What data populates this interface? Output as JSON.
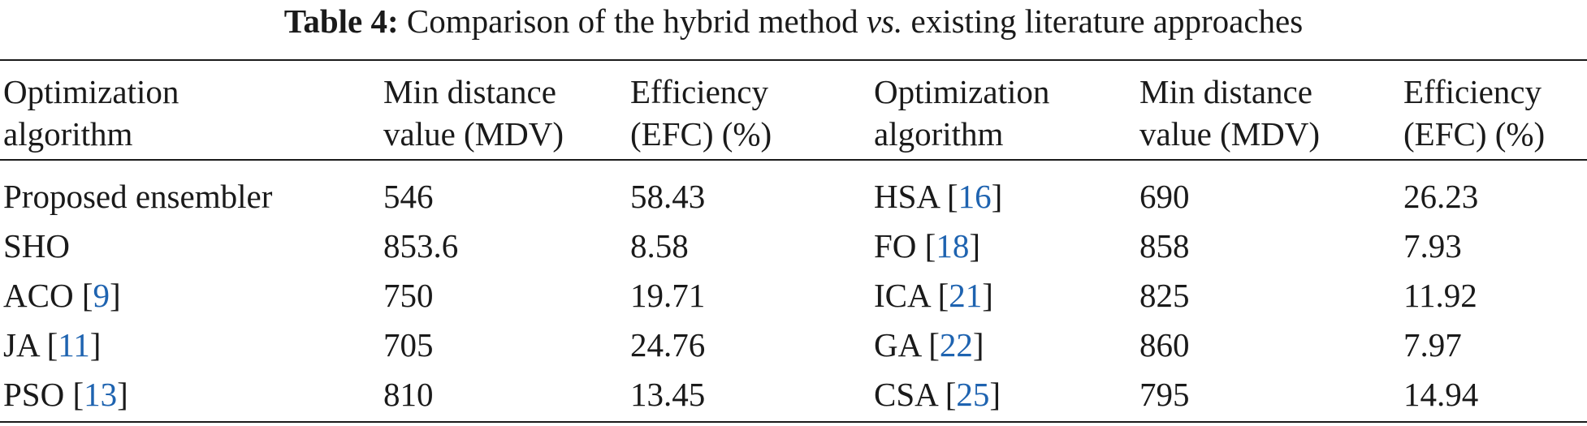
{
  "caption": {
    "label": "Table 4:",
    "text_before": "Comparison of the hybrid method",
    "italic": "vs.",
    "text_after": "existing literature approaches"
  },
  "headers": [
    [
      "Optimization",
      "algorithm"
    ],
    [
      "Min distance",
      "value (MDV)"
    ],
    [
      "Efficiency",
      "(EFC) (%)"
    ],
    [
      "Optimization",
      "algorithm"
    ],
    [
      "Min distance",
      "value (MDV)"
    ],
    [
      "Efficiency",
      "(EFC) (%)"
    ]
  ],
  "rows": [
    {
      "alg1": "Proposed ensembler",
      "ref1": "",
      "mdv1": "546",
      "efc1": "58.43",
      "alg2": "HSA",
      "ref2": "16",
      "mdv2": "690",
      "efc2": "26.23"
    },
    {
      "alg1": "SHO",
      "ref1": "",
      "mdv1": "853.6",
      "efc1": "8.58",
      "alg2": "FO",
      "ref2": "18",
      "mdv2": "858",
      "efc2": "7.93"
    },
    {
      "alg1": "ACO",
      "ref1": "9",
      "mdv1": "750",
      "efc1": "19.71",
      "alg2": "ICA",
      "ref2": "21",
      "mdv2": "825",
      "efc2": "11.92"
    },
    {
      "alg1": "JA",
      "ref1": "11",
      "mdv1": "705",
      "efc1": "24.76",
      "alg2": "GA",
      "ref2": "22",
      "mdv2": "860",
      "efc2": "7.97"
    },
    {
      "alg1": "PSO",
      "ref1": "13",
      "mdv1": "810",
      "efc1": "13.45",
      "alg2": "CSA",
      "ref2": "25",
      "mdv2": "795",
      "efc2": "14.94"
    }
  ]
}
